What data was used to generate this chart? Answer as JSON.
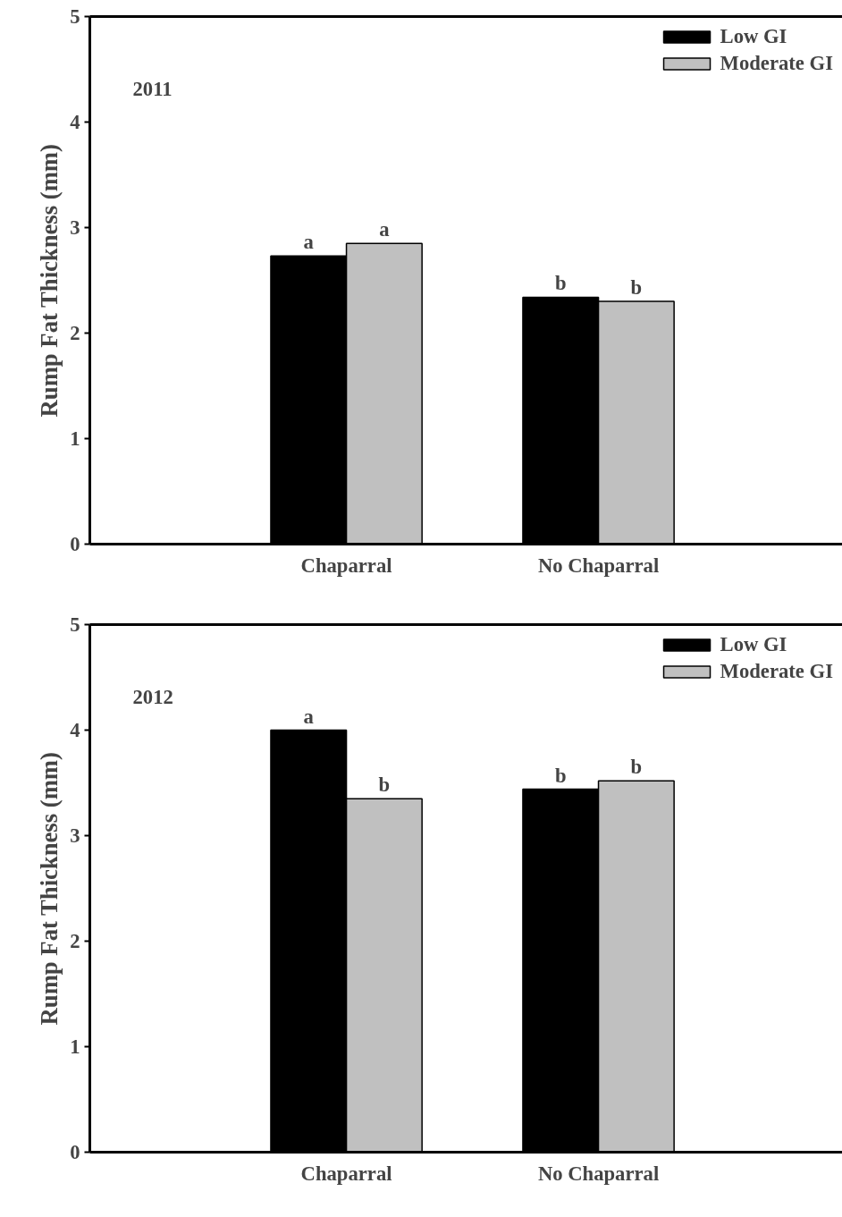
{
  "chart_data": [
    {
      "type": "bar",
      "title": "2011",
      "ylabel": "Rump Fat Thickness (mm)",
      "categories": [
        "Chaparral",
        "No Chaparral"
      ],
      "series": [
        {
          "name": "Low GI",
          "color": "#000000",
          "values": [
            2.73,
            2.34
          ]
        },
        {
          "name": "Moderate GI",
          "color": "#c0c0c0",
          "values": [
            2.85,
            2.3
          ]
        }
      ],
      "ylim": [
        0,
        5
      ],
      "yticks": [
        0,
        1,
        2,
        3,
        4,
        5
      ],
      "grid": false,
      "legend": "top right",
      "annotations": [
        {
          "text": "a",
          "x": "Chaparral",
          "y": 2.73
        },
        {
          "text": "a",
          "x": "Chaparral",
          "y": 2.85
        },
        {
          "text": "b",
          "x": "No Chaparral",
          "y": 2.34
        },
        {
          "text": "b",
          "x": "No Chaparral",
          "y": 2.3
        }
      ]
    },
    {
      "type": "bar",
      "title": "2012",
      "ylabel": "Rump Fat Thickness (mm)",
      "categories": [
        "Chaparral",
        "No Chaparral"
      ],
      "series": [
        {
          "name": "Low GI",
          "color": "#000000",
          "values": [
            4.0,
            3.44
          ]
        },
        {
          "name": "Moderate GI",
          "color": "#c0c0c0",
          "values": [
            3.35,
            3.52
          ]
        }
      ],
      "ylim": [
        0,
        5
      ],
      "yticks": [
        0,
        1,
        2,
        3,
        4,
        5
      ],
      "grid": false,
      "legend": "top right",
      "annotations": [
        {
          "text": "a",
          "x": "Chaparral",
          "y": 4.0
        },
        {
          "text": "b",
          "x": "Chaparral",
          "y": 3.35
        },
        {
          "text": "b",
          "x": "No Chaparral",
          "y": 3.44
        },
        {
          "text": "b",
          "x": "No Chaparral",
          "y": 3.52
        }
      ]
    }
  ]
}
